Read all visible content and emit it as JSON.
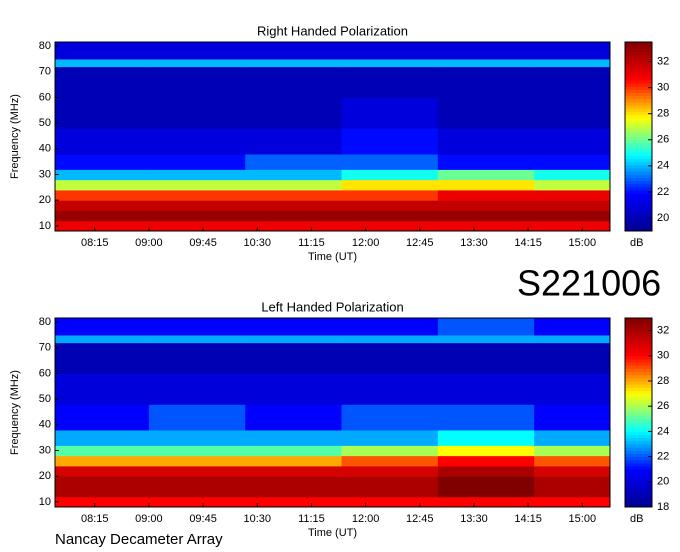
{
  "chart_data": [
    {
      "type": "heatmap",
      "title": "Right Handed Polarization",
      "xlabel": "Time (UT)",
      "ylabel": "Frequency (MHz)",
      "xlim": [
        462,
        923
      ],
      "ylim": [
        8,
        81.6
      ],
      "xticks": [
        {
          "value": 495,
          "label": "08:15"
        },
        {
          "value": 540,
          "label": "09:00"
        },
        {
          "value": 585,
          "label": "09:45"
        },
        {
          "value": 630,
          "label": "10:30"
        },
        {
          "value": 675,
          "label": "11:15"
        },
        {
          "value": 720,
          "label": "12:00"
        },
        {
          "value": 765,
          "label": "12:45"
        },
        {
          "value": 810,
          "label": "13:30"
        },
        {
          "value": 855,
          "label": "14:15"
        },
        {
          "value": 900,
          "label": "15:00"
        }
      ],
      "yticks": [
        10,
        20,
        30,
        40,
        50,
        60,
        70,
        80
      ],
      "xbins": [
        462,
        540,
        620,
        700,
        780,
        860,
        923
      ],
      "ybins": [
        8,
        12,
        16,
        20,
        24,
        28,
        32,
        38,
        48,
        60,
        72,
        75,
        81.6
      ],
      "values": [
        [
          31,
          31,
          31,
          31,
          31,
          31
        ],
        [
          33,
          33,
          33,
          33,
          33,
          33
        ],
        [
          32,
          32,
          32,
          32,
          32,
          32
        ],
        [
          30,
          30,
          30,
          30,
          31,
          31
        ],
        [
          27,
          27,
          27,
          28,
          28,
          27
        ],
        [
          24,
          24,
          24,
          25,
          26,
          25
        ],
        [
          22,
          22,
          23,
          23,
          22,
          22
        ],
        [
          21,
          21,
          21,
          22,
          21,
          21
        ],
        [
          20,
          20,
          20,
          21,
          20,
          20
        ],
        [
          20,
          20,
          20,
          20,
          20,
          20
        ],
        [
          24,
          24,
          24,
          24,
          24,
          24
        ],
        [
          21,
          21,
          21,
          21,
          21,
          21
        ]
      ],
      "zlim": [
        19,
        33.5
      ],
      "zticks": [
        20,
        22,
        24,
        26,
        28,
        30,
        32
      ],
      "colorbar_label": "dB",
      "colormap": [
        "#00008f",
        "#0000ff",
        "#00ffff",
        "#ffff00",
        "#ff0000",
        "#800000"
      ]
    },
    {
      "type": "heatmap",
      "title": "Left Handed Polarization",
      "xlabel": "Time (UT)",
      "ylabel": "Frequency (MHz)",
      "xlim": [
        462,
        923
      ],
      "ylim": [
        8,
        81.6
      ],
      "xticks": [
        {
          "value": 495,
          "label": "08:15"
        },
        {
          "value": 540,
          "label": "09:00"
        },
        {
          "value": 585,
          "label": "09:45"
        },
        {
          "value": 630,
          "label": "10:30"
        },
        {
          "value": 675,
          "label": "11:15"
        },
        {
          "value": 720,
          "label": "12:00"
        },
        {
          "value": 765,
          "label": "12:45"
        },
        {
          "value": 810,
          "label": "13:30"
        },
        {
          "value": 855,
          "label": "14:15"
        },
        {
          "value": 900,
          "label": "15:00"
        }
      ],
      "yticks": [
        10,
        20,
        30,
        40,
        50,
        60,
        70,
        80
      ],
      "xbins": [
        462,
        540,
        620,
        700,
        780,
        860,
        923
      ],
      "ybins": [
        8,
        12,
        16,
        20,
        24,
        28,
        32,
        38,
        48,
        60,
        72,
        75,
        81.6
      ],
      "values": [
        [
          30,
          30,
          30,
          30,
          30,
          30
        ],
        [
          32,
          32,
          32,
          32,
          33,
          32
        ],
        [
          32,
          32,
          32,
          32,
          33,
          32
        ],
        [
          31,
          31,
          31,
          31,
          32,
          31
        ],
        [
          28,
          28,
          28,
          29,
          30,
          29
        ],
        [
          25,
          25,
          25,
          26,
          27,
          26
        ],
        [
          23,
          23,
          23,
          23,
          24,
          23
        ],
        [
          21,
          22,
          21,
          22,
          22,
          21
        ],
        [
          20,
          20,
          20,
          20,
          20,
          20
        ],
        [
          19,
          19,
          19,
          19,
          19,
          19
        ],
        [
          23,
          23,
          23,
          23,
          23,
          23
        ],
        [
          21,
          21,
          21,
          21,
          22,
          21
        ]
      ],
      "zlim": [
        18,
        33
      ],
      "zticks": [
        18,
        20,
        22,
        24,
        26,
        28,
        30,
        32
      ],
      "colorbar_label": "dB",
      "colormap": [
        "#00008f",
        "#0000ff",
        "#00ffff",
        "#ffff00",
        "#ff0000",
        "#800000"
      ]
    }
  ],
  "stamp": "S221006",
  "footer": "Nancay Decameter Array"
}
